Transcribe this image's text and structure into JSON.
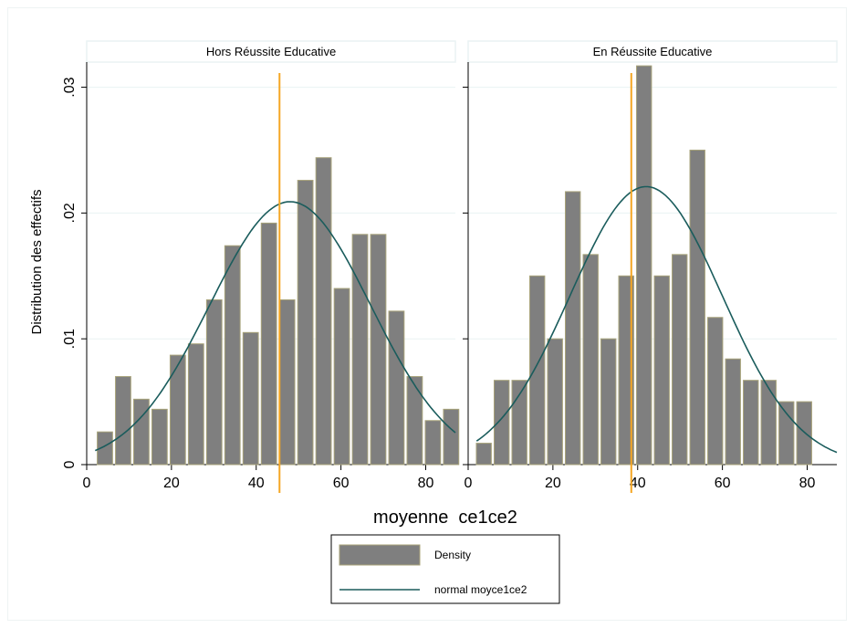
{
  "chart_data": {
    "type": "histogram",
    "ylabel": "Distribution des effectifs",
    "xlabel": "moyenne  ce1ce2",
    "xlim": [
      0,
      87
    ],
    "ylim": [
      0,
      0.032
    ],
    "x_ticks": [
      {
        "value": 0,
        "label": "0"
      },
      {
        "value": 20,
        "label": "20"
      },
      {
        "value": 40,
        "label": "40"
      },
      {
        "value": 60,
        "label": "60"
      },
      {
        "value": 80,
        "label": "80"
      }
    ],
    "y_ticks": [
      {
        "value": 0,
        "label": "0"
      },
      {
        "value": 0.01,
        "label": ".01"
      },
      {
        "value": 0.02,
        "label": ".02"
      },
      {
        "value": 0.03,
        "label": ".03"
      }
    ],
    "grid": true,
    "legend": {
      "position": "bottom-center",
      "items": [
        {
          "label": "Density",
          "kind": "bar",
          "color": "#7f7f7f"
        },
        {
          "label": "normal moyce1ce2",
          "kind": "line",
          "color": "#1a5c5c"
        }
      ]
    },
    "colors": {
      "bar": "#7f7f7f",
      "bar_edge": "#a8a37a",
      "curve": "#1a5c5c",
      "vline": "#f5a623",
      "panel_header": "#eaf2f3",
      "grid": "#eaf2f3"
    },
    "panels": [
      {
        "title": "Hors Réussite Educative",
        "bin_centers": [
          4.3,
          8.6,
          12.9,
          17.2,
          21.5,
          25.8,
          30.1,
          34.4,
          38.7,
          43.0,
          47.3,
          51.6,
          55.9,
          60.2,
          64.5,
          68.8,
          73.1,
          77.4,
          81.7,
          86.0
        ],
        "densities": [
          0.0026,
          0.007,
          0.0052,
          0.0044,
          0.0087,
          0.0096,
          0.0131,
          0.0174,
          0.0105,
          0.0192,
          0.0131,
          0.0226,
          0.0244,
          0.014,
          0.0183,
          0.0183,
          0.0122,
          0.007,
          0.0035,
          0.0044
        ],
        "normal": {
          "mean": 48,
          "sd": 19,
          "peak": 0.0209
        },
        "reference_line": 45.5
      },
      {
        "title": "En Réussite Educative",
        "bin_centers": [
          3.7,
          7.9,
          12.1,
          16.3,
          20.5,
          24.7,
          28.9,
          33.1,
          37.3,
          41.5,
          45.7,
          49.9,
          54.1,
          58.3,
          62.5,
          66.7,
          70.9,
          75.1,
          79.3
        ],
        "densities": [
          0.0017,
          0.0067,
          0.0067,
          0.015,
          0.01,
          0.0217,
          0.0167,
          0.01,
          0.015,
          0.0317,
          0.015,
          0.0167,
          0.025,
          0.0117,
          0.0084,
          0.0067,
          0.0067,
          0.005,
          0.005
        ],
        "normal": {
          "mean": 42,
          "sd": 18,
          "peak": 0.0221
        },
        "reference_line": 38.5
      }
    ]
  }
}
